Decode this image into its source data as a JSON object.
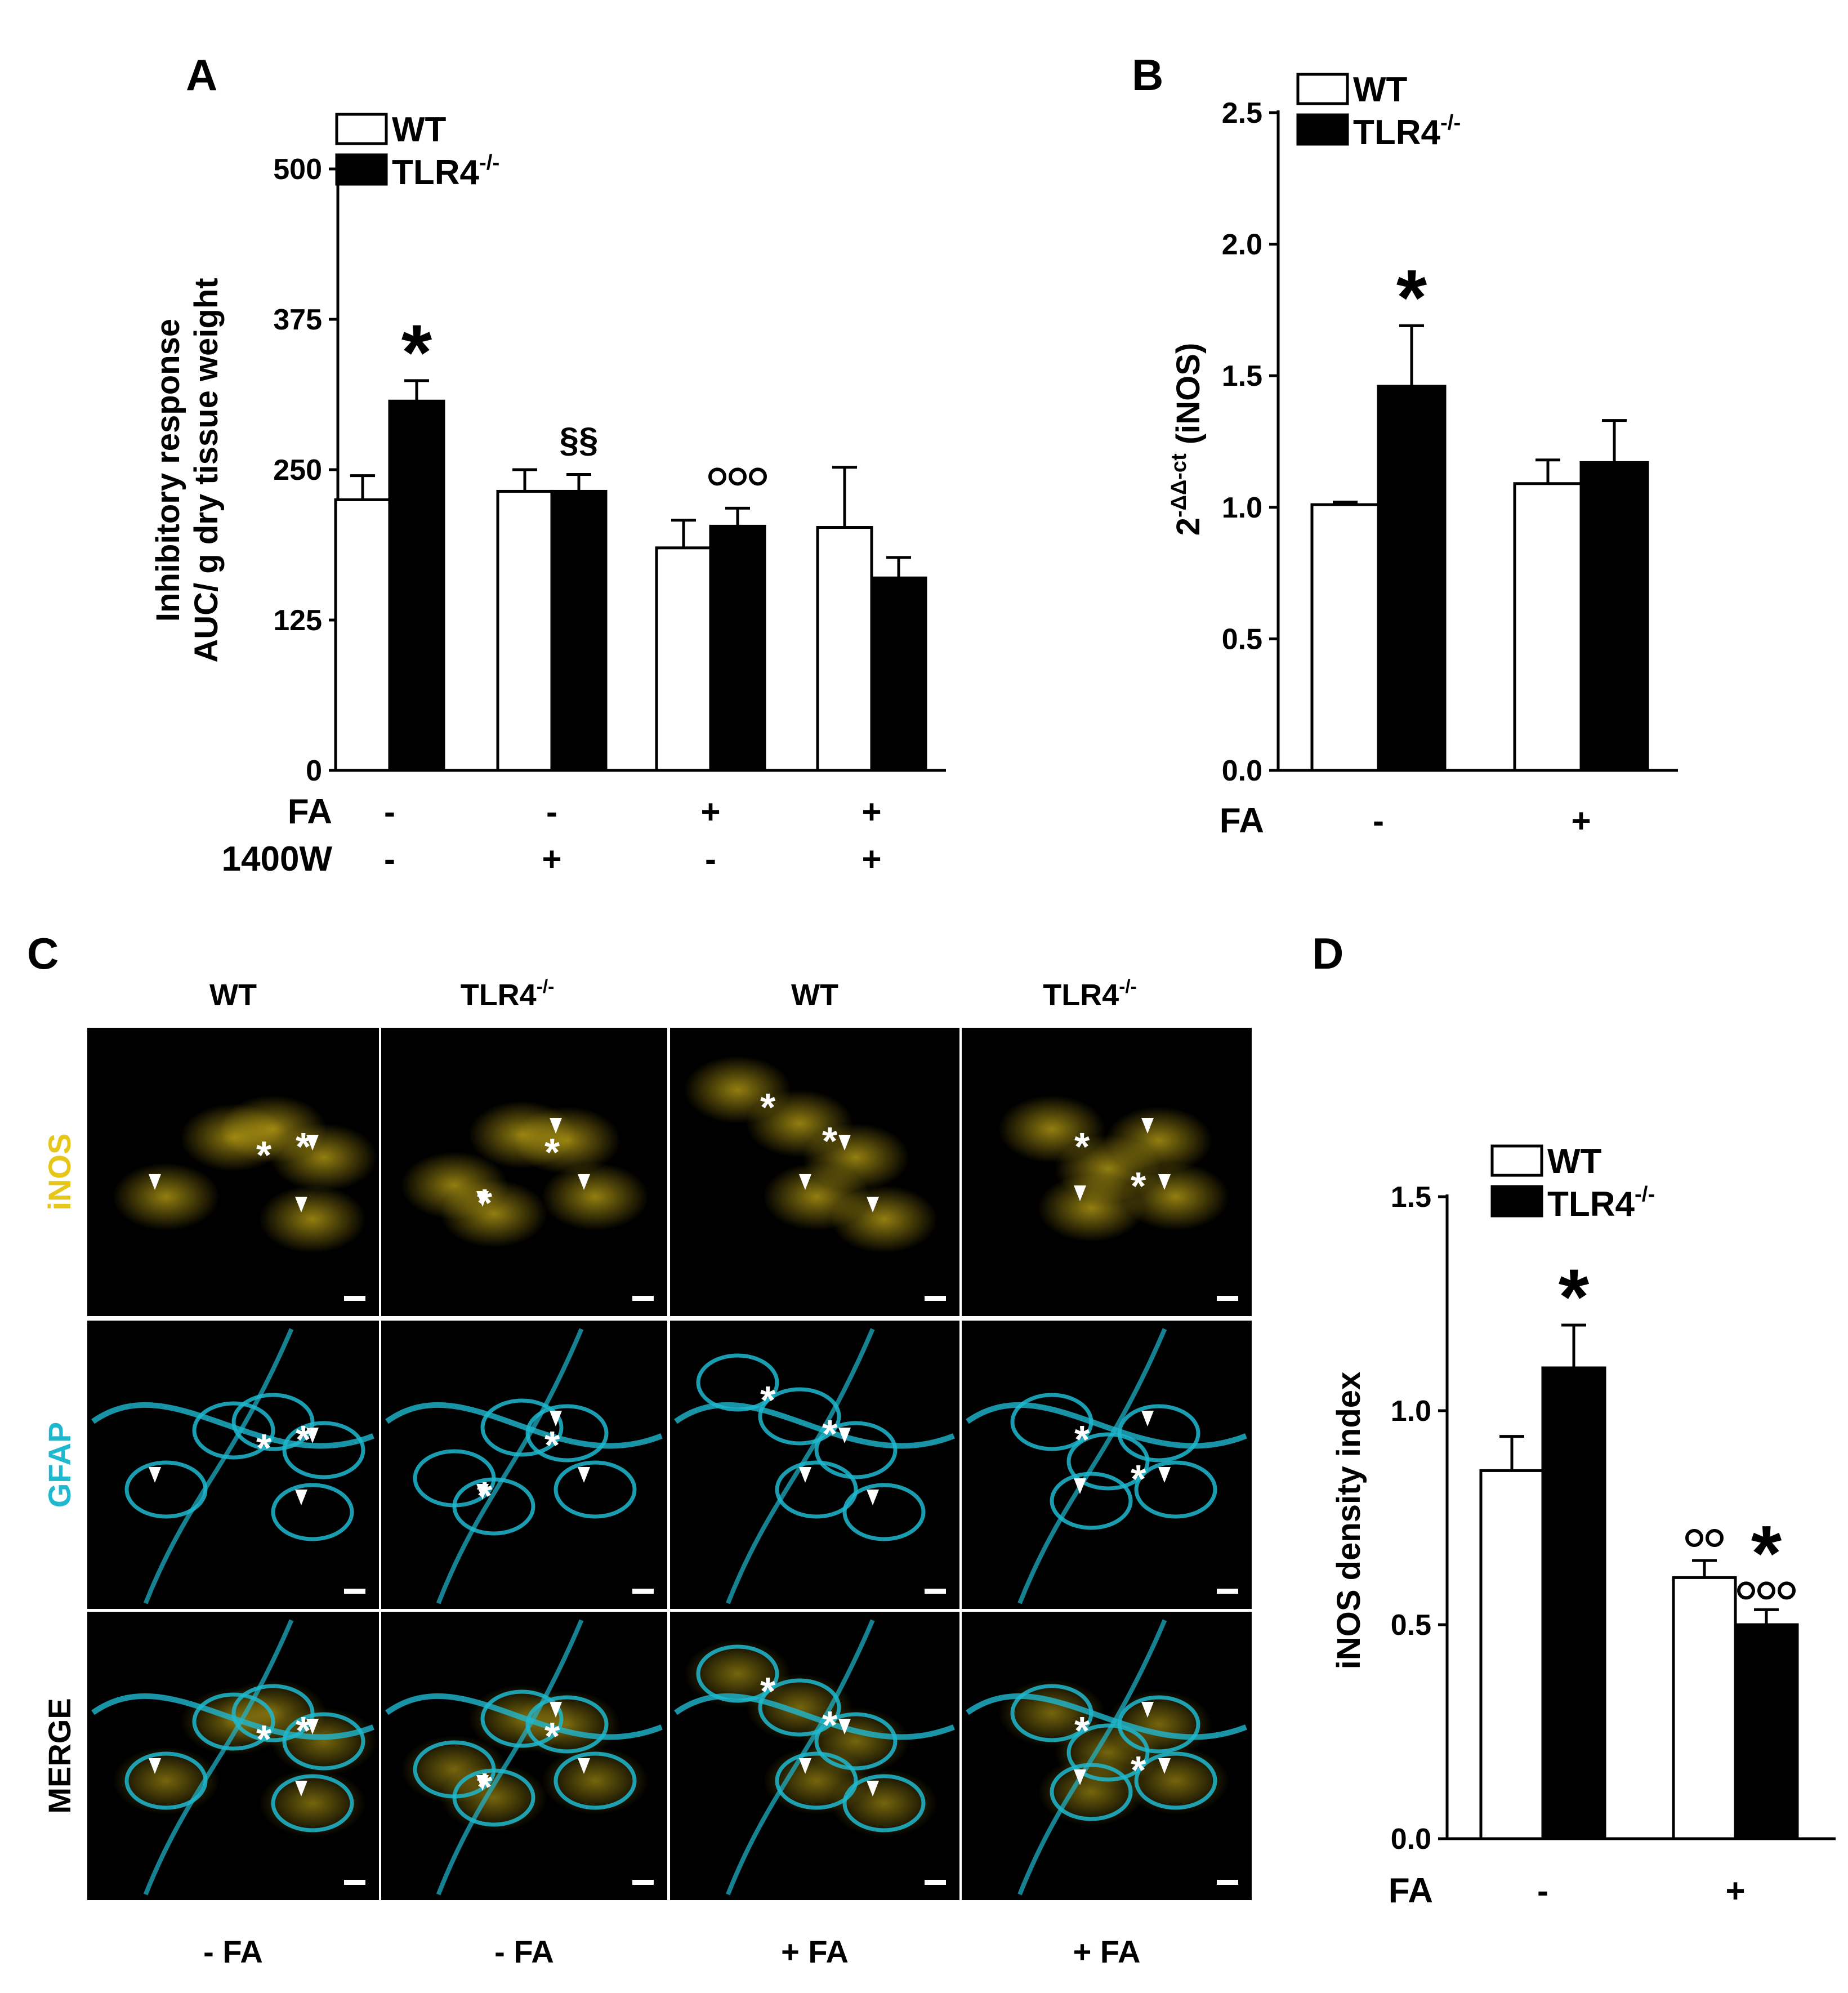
{
  "colors": {
    "wt": "#ffffff",
    "tlr4": "#000000",
    "inos": "#e6c619",
    "gfap": "#1fb8cf",
    "panel_bg": "#000000"
  },
  "chart_data": [
    {
      "panel": "A",
      "type": "bar",
      "ylabel_lines": [
        "Inhibitory response",
        "AUC/ g dry tissue weight"
      ],
      "ylim": [
        0,
        500
      ],
      "yticks": [
        0,
        125,
        250,
        375,
        500
      ],
      "legend": {
        "wt": "WT",
        "tlr4_base": "TLR4",
        "tlr4_sup": "-/-"
      },
      "row_labels": [
        "FA",
        "1400W"
      ],
      "groups": [
        {
          "row1": "-",
          "row2": "-",
          "wt": 225,
          "wt_err": 20,
          "tlr4": 307,
          "tlr4_err": 17,
          "tlr4_mark": "*",
          "mark_big": true
        },
        {
          "row1": "-",
          "row2": "+",
          "wt": 232,
          "wt_err": 18,
          "tlr4": 232,
          "tlr4_err": 14,
          "tlr4_mark": "§§",
          "mark_big": false
        },
        {
          "row1": "+",
          "row2": "-",
          "wt": 185,
          "wt_err": 23,
          "tlr4": 203,
          "tlr4_err": 15,
          "tlr4_mark": "ooo",
          "mark_big": false
        },
        {
          "row1": "+",
          "row2": "+",
          "wt": 202,
          "wt_err": 50,
          "tlr4": 160,
          "tlr4_err": 17,
          "tlr4_mark": "",
          "mark_big": false
        }
      ]
    },
    {
      "panel": "B",
      "type": "bar",
      "ylabel_base": "2",
      "ylabel_sup": "-ΔΔ-ct",
      "ylabel_tail": " (iNOS)",
      "ylim": [
        0,
        2.5
      ],
      "yticks": [
        "0.0",
        "0.5",
        "1.0",
        "1.5",
        "2.0",
        "2.5"
      ],
      "legend": {
        "wt": "WT",
        "tlr4_base": "TLR4",
        "tlr4_sup": "-/-"
      },
      "row_labels": [
        "FA"
      ],
      "groups": [
        {
          "row1": "-",
          "wt": 1.01,
          "wt_err": 0.01,
          "tlr4": 1.46,
          "tlr4_err": 0.23,
          "tlr4_mark": "*"
        },
        {
          "row1": "+",
          "wt": 1.09,
          "wt_err": 0.09,
          "tlr4": 1.17,
          "tlr4_err": 0.16,
          "tlr4_mark": ""
        }
      ]
    },
    {
      "panel": "D",
      "type": "bar",
      "ylabel": "iNOS density index",
      "ylim": [
        0,
        1.5
      ],
      "yticks": [
        "0.0",
        "0.5",
        "1.0",
        "1.5"
      ],
      "legend": {
        "wt": "WT",
        "tlr4_base": "TLR4",
        "tlr4_sup": "-/-"
      },
      "row_labels": [
        "FA"
      ],
      "groups": [
        {
          "row1": "-",
          "wt": 0.86,
          "wt_err": 0.08,
          "wt_mark": "",
          "tlr4": 1.1,
          "tlr4_err": 0.1,
          "tlr4_mark": "*",
          "tlr4_sub": ""
        },
        {
          "row1": "+",
          "wt": 0.61,
          "wt_err": 0.04,
          "wt_mark": "oo",
          "tlr4": 0.5,
          "tlr4_err": 0.035,
          "tlr4_mark": "*",
          "tlr4_sub": "ooo"
        }
      ]
    }
  ],
  "panel_c": {
    "columns": [
      {
        "label_base": "WT",
        "label_sup": "",
        "foot": "- FA"
      },
      {
        "label_base": "TLR4",
        "label_sup": "-/-",
        "foot": "- FA"
      },
      {
        "label_base": "WT",
        "label_sup": "",
        "foot": "+ FA"
      },
      {
        "label_base": "TLR4",
        "label_sup": "-/-",
        "foot": "+ FA"
      }
    ],
    "rows": [
      "iNOS",
      "GFAP",
      "MERGE"
    ]
  },
  "panel_letters": [
    "A",
    "B",
    "C",
    "D"
  ]
}
